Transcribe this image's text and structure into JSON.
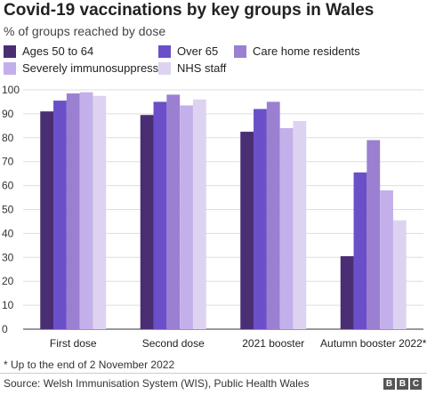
{
  "chart_data": {
    "type": "bar",
    "title": "Covid-19 vaccinations by key groups in Wales",
    "subtitle": "% of groups reached by dose",
    "categories": [
      "First dose",
      "Second dose",
      "2021 booster",
      "Autumn booster 2022*"
    ],
    "series": [
      {
        "name": "Ages 50 to 64",
        "color": "#4a2e73",
        "values": [
          91,
          89.5,
          82.5,
          30.5
        ]
      },
      {
        "name": "Over 65",
        "color": "#6a4fc8",
        "values": [
          95.5,
          95,
          92,
          65.5
        ]
      },
      {
        "name": "Care home residents",
        "color": "#9b7fd0",
        "values": [
          98.5,
          98,
          95,
          79
        ]
      },
      {
        "name": "Severely immunosuppressed",
        "color": "#c3b0ea",
        "values": [
          99,
          93.5,
          84,
          58
        ]
      },
      {
        "name": "NHS staff",
        "color": "#ddd3f1",
        "values": [
          97.5,
          96,
          87,
          45.5
        ]
      }
    ],
    "ylim": [
      0,
      100
    ],
    "yticks": [
      0,
      10,
      20,
      30,
      40,
      50,
      60,
      70,
      80,
      90,
      100
    ],
    "grid": true,
    "legend_position": "top",
    "footnote": "* Up to the end of 2 November 2022",
    "source": "Source: Welsh Immunisation System (WIS), Public Health Wales"
  },
  "branding": {
    "letters": [
      "B",
      "B",
      "C"
    ]
  }
}
